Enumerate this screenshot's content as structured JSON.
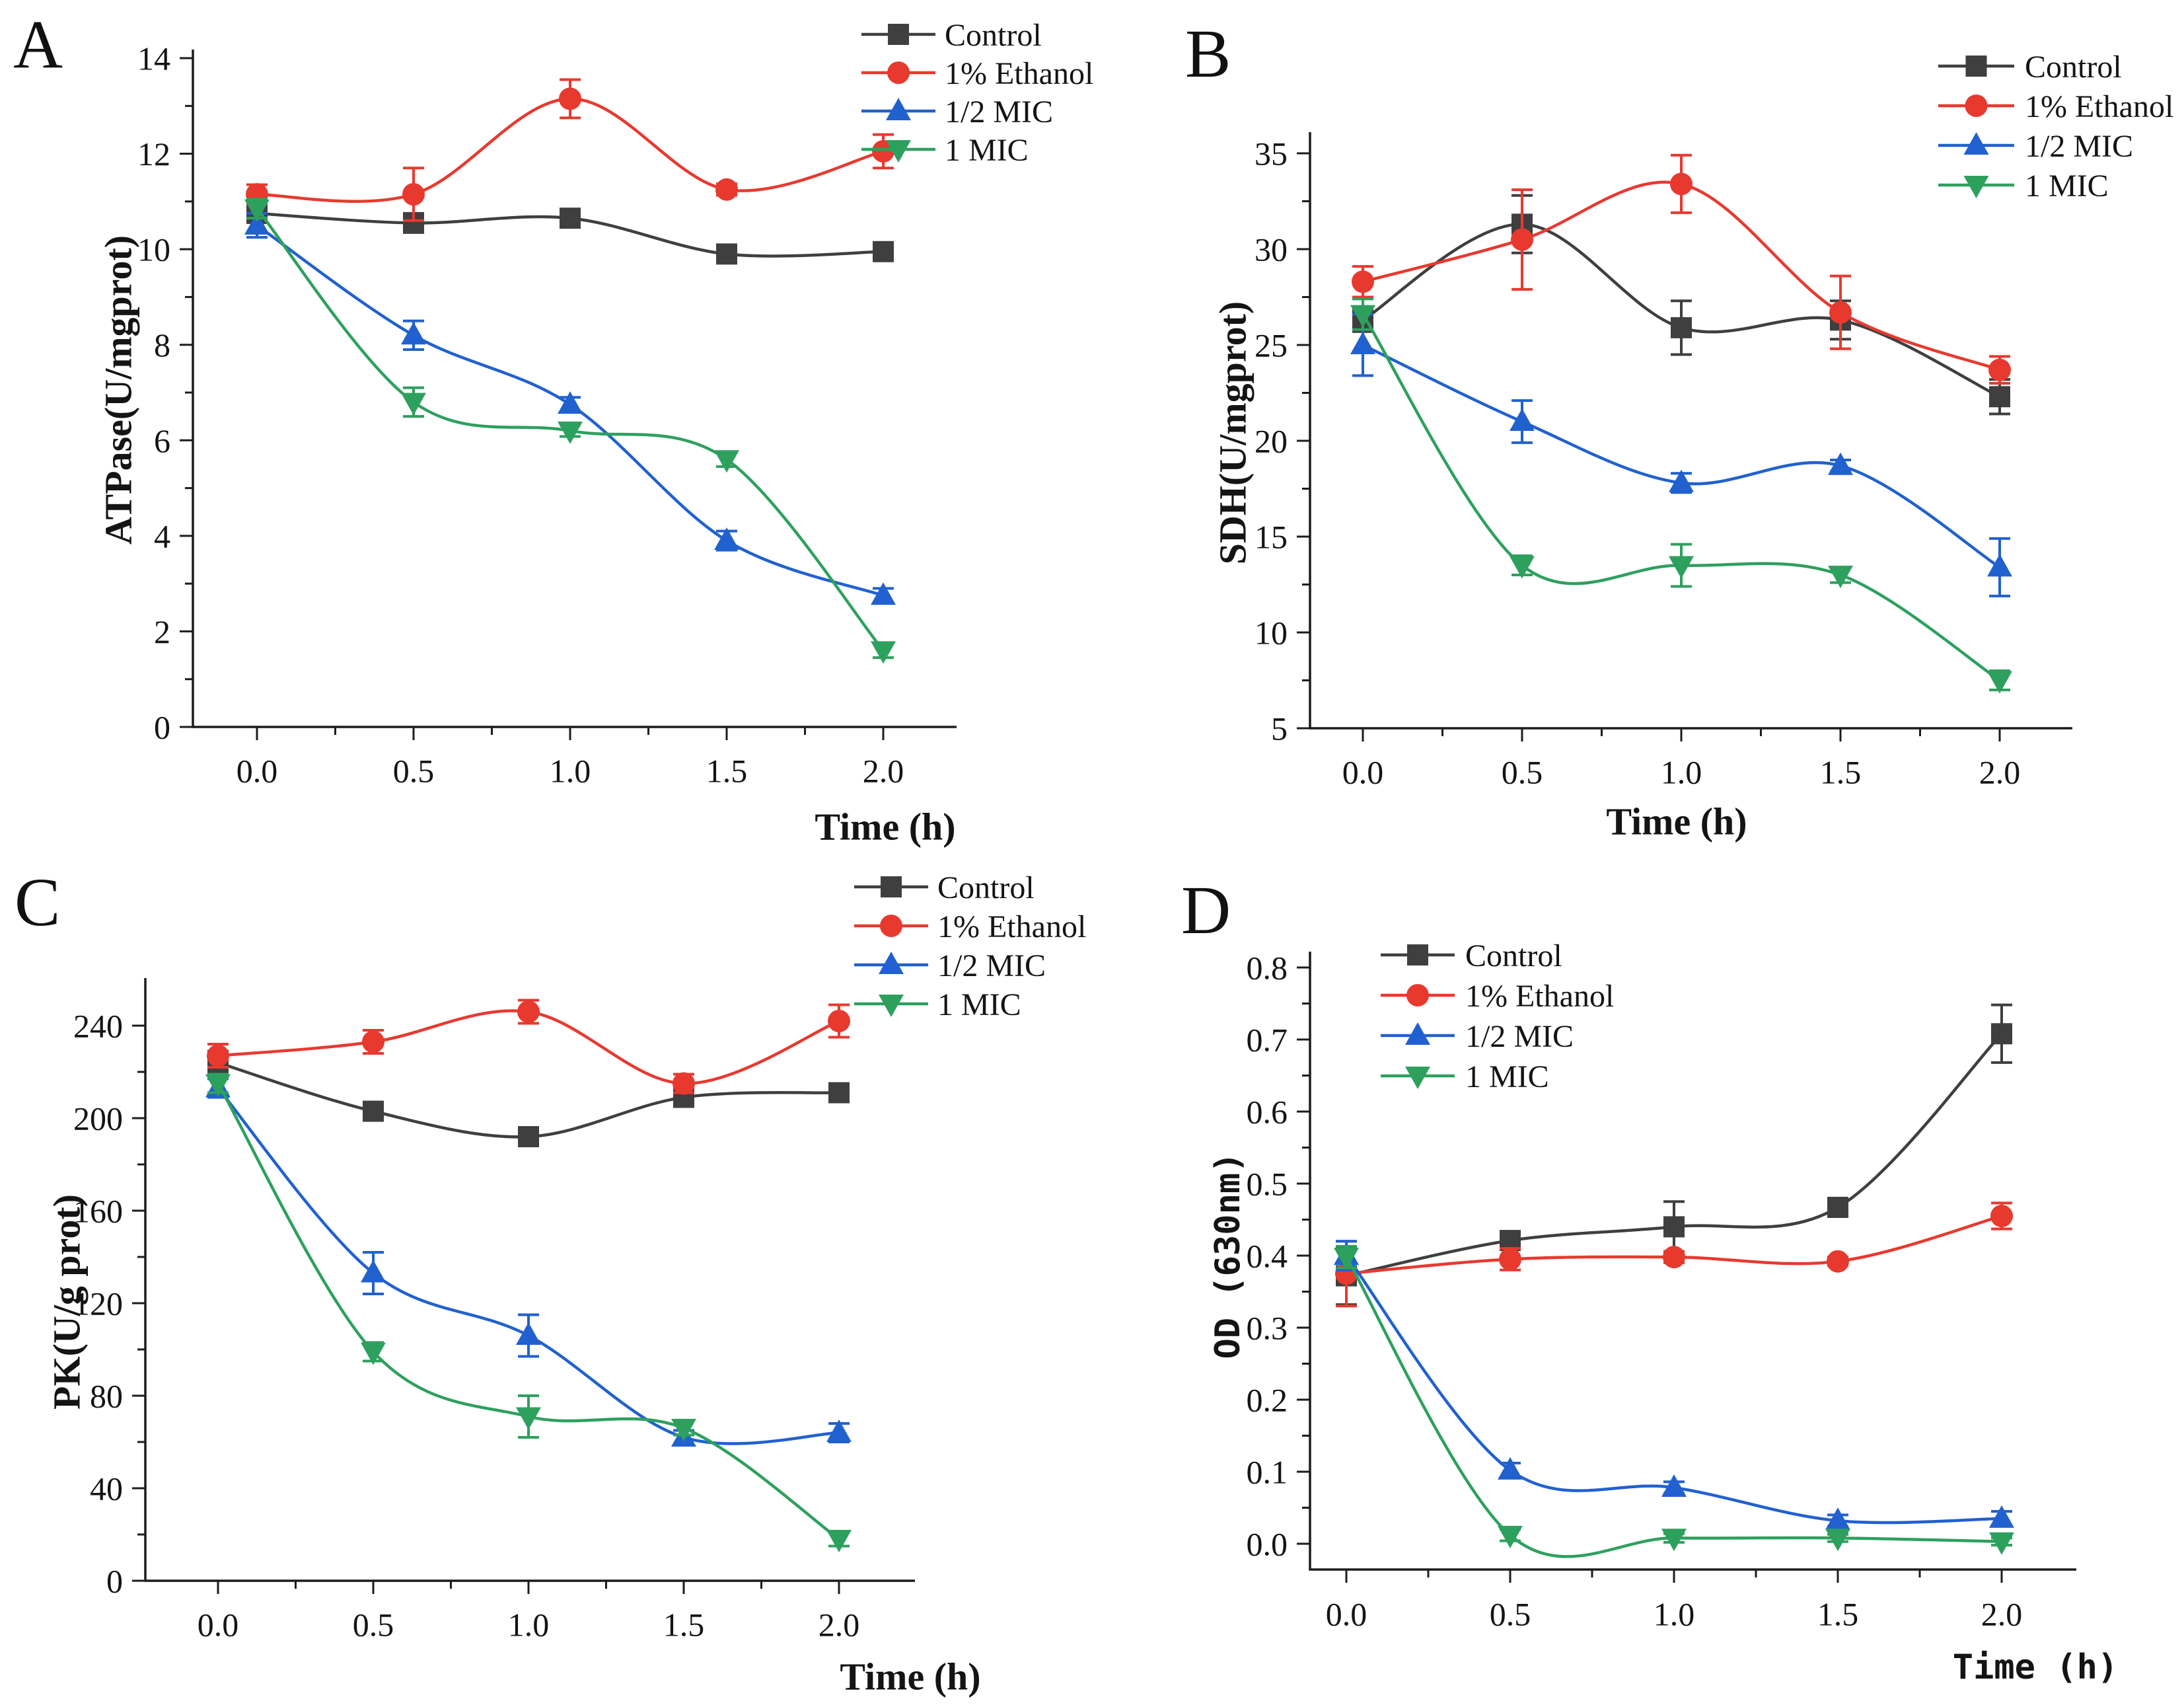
{
  "chart_data": [
    {
      "panel_label": "A",
      "type": "line",
      "xlabel": "Time (h)",
      "ylabel": "ATPase(U/mgprot)",
      "x": [
        0.0,
        0.5,
        1.0,
        1.5,
        2.0
      ],
      "xtick_labels": [
        "0.0",
        "0.5",
        "1.0",
        "1.5",
        "2.0"
      ],
      "ylim": [
        0,
        14.3
      ],
      "yticks": [
        0,
        2,
        4,
        6,
        8,
        10,
        12,
        14
      ],
      "ytick_labels": [
        "0",
        "2",
        "4",
        "6",
        "8",
        "10",
        "12",
        "14"
      ],
      "legend_position": "outside-top-right",
      "grid": false,
      "series": [
        {
          "name": "Control",
          "marker": "square",
          "color": "#3f3f3f",
          "values": [
            10.75,
            10.55,
            10.65,
            9.9,
            9.95
          ],
          "errors": [
            0.15,
            0.2,
            0.15,
            0.12,
            0.12
          ]
        },
        {
          "name": "1% Ethanol",
          "marker": "circle",
          "color": "#e8392f",
          "values": [
            11.15,
            11.15,
            13.15,
            11.25,
            12.05
          ],
          "errors": [
            0.2,
            0.55,
            0.4,
            0.12,
            0.35
          ]
        },
        {
          "name": "1/2 MIC",
          "marker": "triangle-up",
          "color": "#2161cf",
          "values": [
            10.5,
            8.2,
            6.75,
            3.9,
            2.75
          ],
          "errors": [
            0.25,
            0.3,
            0.15,
            0.2,
            0.15
          ]
        },
        {
          "name": "1 MIC",
          "marker": "triangle-down",
          "color": "#2ea05e",
          "values": [
            10.85,
            6.8,
            6.2,
            5.6,
            1.6
          ],
          "errors": [
            0.2,
            0.3,
            0.12,
            0.15,
            0.15
          ]
        }
      ]
    },
    {
      "panel_label": "B",
      "type": "line",
      "xlabel": "Time (h)",
      "ylabel": "SDH(U/mgprot)",
      "x": [
        0.0,
        0.5,
        1.0,
        1.5,
        2.0
      ],
      "xtick_labels": [
        "0.0",
        "0.5",
        "1.0",
        "1.5",
        "2.0"
      ],
      "ylim": [
        5,
        38.2
      ],
      "yticks": [
        5,
        10,
        15,
        20,
        25,
        30,
        35
      ],
      "ytick_labels": [
        "5",
        "10",
        "15",
        "20",
        "25",
        "30",
        "35"
      ],
      "legend_position": "outside-top-right",
      "grid": false,
      "series": [
        {
          "name": "Control",
          "marker": "square",
          "color": "#3f3f3f",
          "values": [
            26.3,
            31.3,
            25.9,
            26.3,
            22.3
          ],
          "errors": [
            0.6,
            1.5,
            1.4,
            1.0,
            0.9
          ]
        },
        {
          "name": "1% Ethanol",
          "marker": "circle",
          "color": "#e8392f",
          "values": [
            28.3,
            30.5,
            33.4,
            26.7,
            23.7
          ],
          "errors": [
            0.8,
            2.6,
            1.5,
            1.9,
            0.7
          ]
        },
        {
          "name": "1/2 MIC",
          "marker": "triangle-up",
          "color": "#2161cf",
          "values": [
            25.0,
            21.0,
            17.8,
            18.7,
            13.4
          ],
          "errors": [
            1.6,
            1.1,
            0.5,
            0.3,
            1.5
          ]
        },
        {
          "name": "1 MIC",
          "marker": "triangle-down",
          "color": "#2ea05e",
          "values": [
            26.6,
            13.5,
            13.5,
            13.0,
            7.5
          ],
          "errors": [
            0.8,
            0.5,
            1.1,
            0.4,
            0.5
          ]
        }
      ]
    },
    {
      "panel_label": "C",
      "type": "line",
      "xlabel": "Time (h)",
      "ylabel": "PK(U/g prot)",
      "x": [
        0.0,
        0.5,
        1.0,
        1.5,
        2.0
      ],
      "xtick_labels": [
        "0.0",
        "0.5",
        "1.0",
        "1.5",
        "2.0"
      ],
      "ylim": [
        0,
        262
      ],
      "yticks": [
        0,
        40,
        80,
        120,
        160,
        200,
        240
      ],
      "ytick_labels": [
        "0",
        "40",
        "80",
        "120",
        "160",
        "200",
        "240"
      ],
      "legend_position": "outside-top-right",
      "grid": false,
      "series": [
        {
          "name": "Control",
          "marker": "square",
          "color": "#3f3f3f",
          "values": [
            224,
            203,
            192,
            209,
            211
          ],
          "errors": [
            5,
            4,
            3,
            3,
            3
          ]
        },
        {
          "name": "1% Ethanol",
          "marker": "circle",
          "color": "#e8392f",
          "values": [
            227,
            233,
            246,
            215,
            242
          ],
          "errors": [
            5,
            5,
            5,
            4,
            7
          ]
        },
        {
          "name": "1/2 MIC",
          "marker": "triangle-up",
          "color": "#2161cf",
          "values": [
            213,
            133,
            106,
            62,
            64
          ],
          "errors": [
            4,
            9,
            9,
            3,
            4
          ]
        },
        {
          "name": "1 MIC",
          "marker": "triangle-down",
          "color": "#2ea05e",
          "values": [
            215,
            99,
            71,
            66,
            18
          ],
          "errors": [
            4,
            4,
            9,
            3,
            3
          ]
        }
      ]
    },
    {
      "panel_label": "D",
      "type": "line",
      "xlabel": "Time (h)",
      "ylabel": "OD (630nm)",
      "x": [
        0.0,
        0.5,
        1.0,
        1.5,
        2.0
      ],
      "xtick_labels": [
        "0.0",
        "0.5",
        "1.0",
        "1.5",
        "2.0"
      ],
      "ylim": [
        -0.07,
        0.82
      ],
      "yticks": [
        0.0,
        0.1,
        0.2,
        0.3,
        0.4,
        0.5,
        0.6,
        0.7,
        0.8
      ],
      "ytick_labels": [
        "0.0",
        "0.1",
        "0.2",
        "0.3",
        "0.4",
        "0.5",
        "0.6",
        "0.7",
        "0.8"
      ],
      "legend_position": "inside-top-left",
      "grid": false,
      "series": [
        {
          "name": "Control",
          "marker": "square",
          "color": "#3f3f3f",
          "values": [
            0.372,
            0.421,
            0.44,
            0.467,
            0.708
          ],
          "errors": [
            0.04,
            0.012,
            0.035,
            0.012,
            0.04
          ]
        },
        {
          "name": "1% Ethanol",
          "marker": "circle",
          "color": "#e8392f",
          "values": [
            0.375,
            0.395,
            0.398,
            0.392,
            0.455
          ],
          "errors": [
            0.045,
            0.015,
            0.008,
            0.006,
            0.018
          ]
        },
        {
          "name": "1/2 MIC",
          "marker": "triangle-up",
          "color": "#2161cf",
          "values": [
            0.4,
            0.102,
            0.078,
            0.032,
            0.035
          ],
          "errors": [
            0.02,
            0.01,
            0.008,
            0.008,
            0.01
          ]
        },
        {
          "name": "1 MIC",
          "marker": "triangle-down",
          "color": "#2ea05e",
          "values": [
            0.398,
            0.012,
            0.008,
            0.008,
            0.003
          ],
          "errors": [
            0.015,
            0.008,
            0.006,
            0.005,
            0.005
          ]
        }
      ]
    }
  ]
}
